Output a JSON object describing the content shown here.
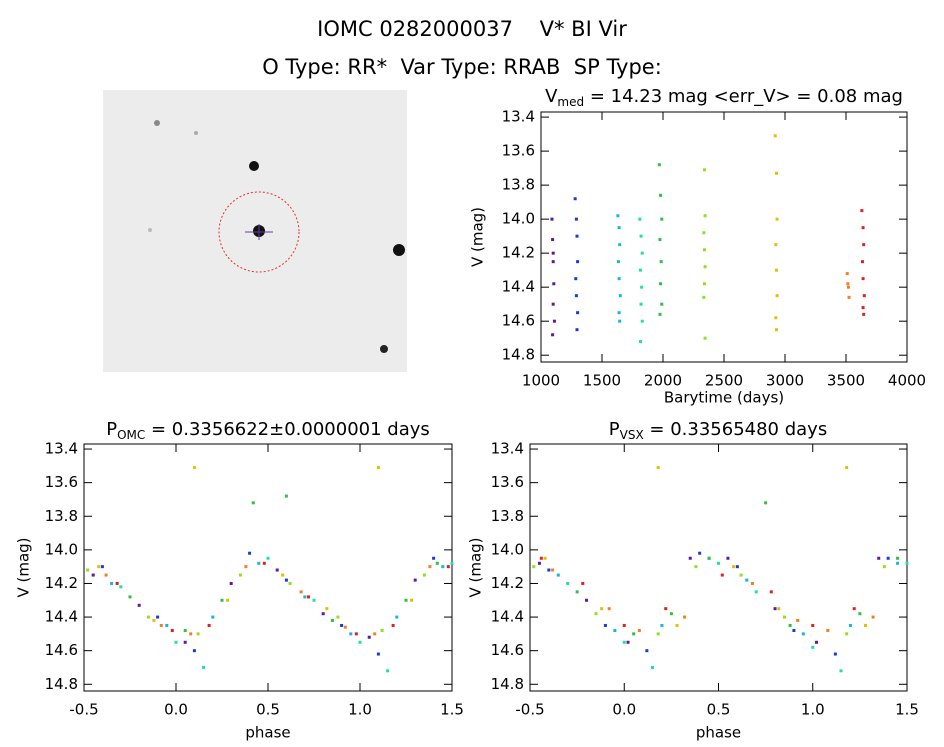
{
  "header": {
    "title": "IOMC 0282000037    V* BI Vir",
    "subtitle": "O Type: RR*  Var Type: RRAB  SP Type:"
  },
  "chart_data": [
    {
      "type": "scatter",
      "title": {
        "symbol": "V",
        "subscript": "med",
        "text": " = 14.23 mag <err_V> = 0.08 mag"
      },
      "x_label": "Barytime (days)",
      "y_label": "V (mag)",
      "xlim": [
        1000,
        4000
      ],
      "xticks": [
        1000,
        1500,
        2000,
        2500,
        3000,
        3500,
        4000
      ],
      "ylim": [
        14.84,
        13.37
      ],
      "yticks": [
        13.4,
        13.6,
        13.8,
        {
          "value": 14,
          "label": "14.0"
        },
        14.2,
        14.4,
        14.6,
        14.8
      ],
      "series": [
        {
          "color": "#5a1aa0",
          "x": [
            1090,
            1095,
            1100,
            1105,
            1100,
            1110,
            1095,
            1100
          ],
          "values": [
            14.0,
            14.12,
            14.25,
            14.38,
            14.5,
            14.6,
            14.68,
            14.2
          ]
        },
        {
          "color": "#1a3ad8",
          "x": [
            1280,
            1290,
            1295,
            1300,
            1285,
            1290,
            1300,
            1295
          ],
          "values": [
            13.88,
            14.0,
            14.1,
            14.25,
            14.35,
            14.45,
            14.55,
            14.65
          ]
        },
        {
          "color": "#1ab4e0",
          "x": [
            1630,
            1640,
            1645,
            1635,
            1640,
            1650,
            1640,
            1645
          ],
          "values": [
            13.98,
            14.05,
            14.15,
            14.25,
            14.35,
            14.45,
            14.55,
            14.6
          ]
        },
        {
          "color": "#20e0a8",
          "x": [
            1810,
            1820,
            1830,
            1815,
            1825,
            1820,
            1830,
            1815
          ],
          "values": [
            14.0,
            14.1,
            14.2,
            14.3,
            14.4,
            14.5,
            14.6,
            14.72
          ]
        },
        {
          "color": "#30c040",
          "x": [
            1970,
            1980,
            1990,
            1975,
            1985,
            1980,
            1990,
            1975
          ],
          "values": [
            13.68,
            13.86,
            14.0,
            14.12,
            14.25,
            14.38,
            14.5,
            14.56
          ]
        },
        {
          "color": "#90e020",
          "x": [
            2340,
            2345,
            2335,
            2340,
            2345,
            2340,
            2335,
            2345
          ],
          "values": [
            13.71,
            13.98,
            14.08,
            14.18,
            14.28,
            14.38,
            14.46,
            14.7
          ]
        },
        {
          "color": "#e0c000",
          "x": [
            2920,
            2930,
            2935,
            2925,
            2930,
            2935,
            2925,
            2930
          ],
          "values": [
            13.51,
            13.73,
            14.0,
            14.15,
            14.3,
            14.45,
            14.58,
            14.65
          ]
        },
        {
          "color": "#f08020",
          "x": [
            3510,
            3520,
            3525,
            3515
          ],
          "values": [
            14.32,
            14.4,
            14.46,
            14.38
          ]
        },
        {
          "color": "#e02020",
          "x": [
            3630,
            3640,
            3645,
            3635,
            3640,
            3650,
            3640,
            3645
          ],
          "values": [
            13.95,
            14.05,
            14.15,
            14.25,
            14.35,
            14.45,
            14.52,
            14.56
          ]
        }
      ]
    },
    {
      "type": "scatter",
      "title": {
        "symbol": "P",
        "subscript": "OMC",
        "text": " = 0.3356622±0.0000001 days"
      },
      "x_label": "phase",
      "y_label": "V (mag)",
      "xlim": [
        -0.5,
        1.5
      ],
      "xticks": [
        -0.5,
        {
          "value": 0,
          "label": "0.0"
        },
        0.5,
        {
          "value": 1,
          "label": "1.0"
        },
        1.5
      ],
      "ylim": [
        14.84,
        13.37
      ],
      "yticks": [
        13.4,
        13.6,
        13.8,
        {
          "value": 14,
          "label": "14.0"
        },
        14.2,
        14.4,
        14.6,
        14.8
      ],
      "series": [
        {
          "color": "#5a1aa0",
          "x": [
            -0.45,
            -0.2,
            0.05,
            0.3,
            0.55,
            0.8,
            1.05,
            1.3
          ],
          "values": [
            14.15,
            14.33,
            14.55,
            14.2,
            14.12,
            14.38,
            14.52,
            14.18
          ]
        },
        {
          "color": "#1a3ad8",
          "x": [
            -0.4,
            -0.1,
            0.1,
            0.4,
            0.6,
            0.9,
            1.1,
            1.4
          ],
          "values": [
            14.1,
            14.4,
            14.6,
            14.02,
            14.18,
            14.45,
            14.62,
            14.05
          ]
        },
        {
          "color": "#1ab4e0",
          "x": [
            -0.35,
            -0.05,
            0.2,
            0.45,
            0.7,
            0.95,
            1.2,
            1.45
          ],
          "values": [
            14.2,
            14.45,
            14.4,
            14.08,
            14.28,
            14.5,
            14.4,
            14.1
          ]
        },
        {
          "color": "#20e0a8",
          "x": [
            -0.3,
            0.0,
            0.15,
            0.5,
            0.75,
            1.0,
            1.15,
            1.5
          ],
          "values": [
            14.22,
            14.55,
            14.7,
            14.05,
            14.3,
            14.55,
            14.72,
            14.08
          ]
        },
        {
          "color": "#30c040",
          "x": [
            -0.25,
            0.05,
            0.25,
            0.42,
            0.6,
            0.85,
            1.25,
            1.42
          ],
          "values": [
            14.28,
            14.48,
            14.3,
            13.72,
            13.68,
            14.42,
            14.3,
            14.08
          ]
        },
        {
          "color": "#90e020",
          "x": [
            -0.48,
            -0.15,
            0.12,
            0.35,
            0.62,
            0.88,
            1.12,
            1.35
          ],
          "values": [
            14.12,
            14.4,
            14.5,
            14.15,
            14.2,
            14.4,
            14.48,
            14.15
          ]
        },
        {
          "color": "#e0c000",
          "x": [
            -0.42,
            -0.12,
            0.1,
            0.28,
            0.58,
            0.82,
            1.1,
            1.28
          ],
          "values": [
            14.1,
            14.42,
            13.51,
            14.3,
            14.15,
            14.35,
            13.51,
            14.3
          ]
        },
        {
          "color": "#f08020",
          "x": [
            -0.38,
            -0.08,
            0.08,
            0.38,
            0.68,
            0.92,
            1.08,
            1.38
          ],
          "values": [
            14.15,
            14.45,
            14.5,
            14.1,
            14.25,
            14.46,
            14.5,
            14.1
          ]
        },
        {
          "color": "#e02020",
          "x": [
            -0.32,
            -0.02,
            0.18,
            0.48,
            0.72,
            0.98,
            1.18,
            1.48
          ],
          "values": [
            14.2,
            14.48,
            14.45,
            14.08,
            14.28,
            14.5,
            14.45,
            14.1
          ]
        }
      ]
    },
    {
      "type": "scatter",
      "title": {
        "symbol": "P",
        "subscript": "VSX",
        "text": " = 0.33565480 days"
      },
      "x_label": "phase",
      "y_label": "V (mag)",
      "xlim": [
        -0.5,
        1.5
      ],
      "xticks": [
        -0.5,
        {
          "value": 0,
          "label": "0.0"
        },
        0.5,
        {
          "value": 1,
          "label": "1.0"
        },
        1.5
      ],
      "ylim": [
        14.84,
        13.37
      ],
      "yticks": [
        13.4,
        13.6,
        13.8,
        {
          "value": 14,
          "label": "14.0"
        },
        14.2,
        14.4,
        14.6,
        14.8
      ],
      "series": [
        {
          "color": "#5a1aa0",
          "x": [
            -0.45,
            -0.2,
            0.02,
            0.35,
            0.55,
            0.8,
            1.02,
            1.35
          ],
          "values": [
            14.08,
            14.3,
            14.55,
            14.05,
            14.05,
            14.35,
            14.55,
            14.05
          ]
        },
        {
          "color": "#1a3ad8",
          "x": [
            -0.4,
            -0.1,
            0.12,
            0.4,
            0.6,
            0.9,
            1.12,
            1.4
          ],
          "values": [
            14.12,
            14.45,
            14.6,
            14.02,
            14.1,
            14.48,
            14.62,
            14.05
          ]
        },
        {
          "color": "#1ab4e0",
          "x": [
            -0.35,
            -0.05,
            0.2,
            0.45,
            0.65,
            0.95,
            1.2,
            1.45
          ],
          "values": [
            14.15,
            14.48,
            14.45,
            14.05,
            14.18,
            14.5,
            14.45,
            14.08
          ]
        },
        {
          "color": "#20e0a8",
          "x": [
            -0.3,
            0.0,
            0.15,
            0.5,
            0.7,
            1.0,
            1.15,
            1.5
          ],
          "values": [
            14.2,
            14.55,
            14.7,
            14.08,
            14.25,
            14.58,
            14.72,
            14.08
          ]
        },
        {
          "color": "#30c040",
          "x": [
            -0.25,
            0.05,
            0.25,
            0.45,
            0.75,
            0.88,
            1.25,
            1.45
          ],
          "values": [
            14.25,
            14.5,
            14.38,
            14.05,
            13.72,
            14.45,
            14.38,
            14.05
          ]
        },
        {
          "color": "#90e020",
          "x": [
            -0.48,
            -0.15,
            0.18,
            0.38,
            0.62,
            0.85,
            1.18,
            1.38
          ],
          "values": [
            14.1,
            14.38,
            14.5,
            14.1,
            14.15,
            14.4,
            14.5,
            14.1
          ]
        },
        {
          "color": "#e0c000",
          "x": [
            -0.42,
            -0.12,
            0.18,
            0.28,
            0.58,
            0.82,
            1.18,
            1.28
          ],
          "values": [
            14.05,
            14.35,
            13.51,
            14.45,
            14.1,
            14.35,
            13.51,
            14.45
          ]
        },
        {
          "color": "#f08020",
          "x": [
            -0.38,
            -0.08,
            0.08,
            0.32,
            0.68,
            0.92,
            1.08,
            1.32
          ],
          "values": [
            14.12,
            14.35,
            14.48,
            14.4,
            14.2,
            14.42,
            14.48,
            14.4
          ]
        },
        {
          "color": "#e02020",
          "x": [
            -0.44,
            -0.22,
            0.0,
            0.22,
            0.52,
            0.78,
            1.0,
            1.22
          ],
          "values": [
            14.05,
            14.2,
            14.45,
            14.35,
            14.15,
            14.25,
            14.45,
            14.35
          ]
        }
      ]
    }
  ]
}
